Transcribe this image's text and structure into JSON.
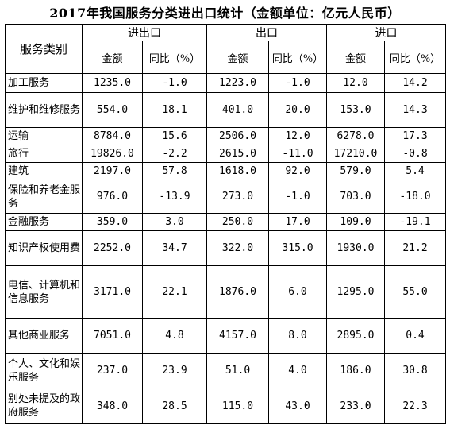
{
  "title": "2017年我国服务分类进出口统计（金额单位：亿元人民币）",
  "header": {
    "category_label": "服务类别",
    "groups": [
      "进出口",
      "出口",
      "进口"
    ],
    "amount_label": "金额",
    "yoy_label": "同比（%）"
  },
  "rows": [
    {
      "name": "加工服务",
      "values": [
        "1235.0",
        "-1.0",
        "1223.0",
        "-1.0",
        "12.0",
        "14.2"
      ]
    },
    {
      "name": "维护和维修服务",
      "values": [
        "554.0",
        "18.1",
        "401.0",
        "20.0",
        "153.0",
        "14.3"
      ]
    },
    {
      "name": "运输",
      "values": [
        "8784.0",
        "15.6",
        "2506.0",
        "12.0",
        "6278.0",
        "17.3"
      ]
    },
    {
      "name": "旅行",
      "values": [
        "19826.0",
        "-2.2",
        "2615.0",
        "-11.0",
        "17210.0",
        "-0.8"
      ]
    },
    {
      "name": "建筑",
      "values": [
        "2197.0",
        "57.8",
        "1618.0",
        "92.0",
        "579.0",
        "5.4"
      ]
    },
    {
      "name": "保险和养老金服务",
      "values": [
        "976.0",
        "-13.9",
        "273.0",
        "-1.0",
        "703.0",
        "-18.0"
      ]
    },
    {
      "name": "金融服务",
      "values": [
        "359.0",
        "3.0",
        "250.0",
        "17.0",
        "109.0",
        "-19.1"
      ]
    },
    {
      "name": "知识产权使用费",
      "values": [
        "2252.0",
        "34.7",
        "322.0",
        "315.0",
        "1930.0",
        "21.2"
      ]
    },
    {
      "name": "电信、计算机和信息服务",
      "values": [
        "3171.0",
        "22.1",
        "1876.0",
        "6.0",
        "1295.0",
        "55.0"
      ]
    },
    {
      "name": "其他商业服务",
      "values": [
        "7051.0",
        "4.8",
        "4157.0",
        "8.0",
        "2895.0",
        "0.4"
      ]
    },
    {
      "name": "个人、文化和娱乐服务",
      "values": [
        "237.0",
        "23.9",
        "51.0",
        "4.0",
        "186.0",
        "30.8"
      ]
    },
    {
      "name": "别处未提及的政府服务",
      "values": [
        "348.0",
        "28.5",
        "115.0",
        "43.0",
        "233.0",
        "22.3"
      ]
    }
  ]
}
